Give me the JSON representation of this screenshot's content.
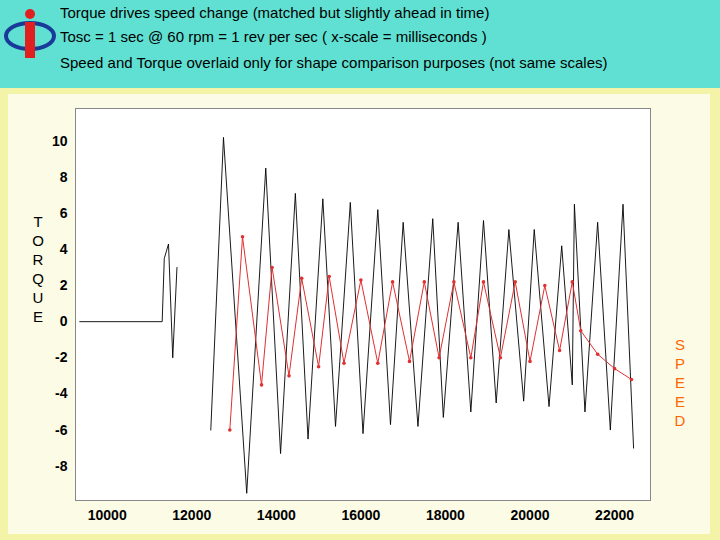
{
  "chart_data": {
    "type": "line",
    "title": "Torque drives speed change (matched but slightly ahead in time)",
    "subtitle": [
      "Tosc = 1 sec @ 60 rpm = 1 rev per sec   ( x-scale = milliseconds )",
      "Speed and Torque overlaid only for shape comparison purposes (not same scales)"
    ],
    "ylabel": "TORQUE",
    "y2label": "SPEED",
    "xlim": [
      9250,
      22850
    ],
    "xticks": [
      10000,
      12000,
      14000,
      16000,
      18000,
      20000,
      22000
    ],
    "ylim": [
      -9.9,
      11.8
    ],
    "yticks": [
      -8,
      -6,
      -4,
      -2,
      0,
      2,
      4,
      6,
      8,
      10
    ],
    "grid": false,
    "series": [
      {
        "name": "TORQUE",
        "color": "#000000",
        "marker": "none",
        "line_style": "solid",
        "x": [
          9350,
          11300,
          11350,
          11450,
          11550,
          11650,
          11700,
          12450,
          12750,
          13300,
          13750,
          14100,
          14450,
          14750,
          15100,
          15400,
          15750,
          16050,
          16400,
          16700,
          17000,
          17350,
          17700,
          17950,
          18300,
          18600,
          18900,
          19200,
          19500,
          19850,
          20100,
          20450,
          20750,
          21000,
          21050,
          21300,
          21600,
          21900,
          22200,
          22450
        ],
        "values": [
          0,
          0,
          3.5,
          4.3,
          -2,
          3,
          null,
          -6,
          10.2,
          -9.5,
          8.5,
          -7.3,
          7.1,
          -6.5,
          6.8,
          -5.8,
          6.6,
          -6.2,
          6.2,
          -5.7,
          5.5,
          -5.8,
          5.7,
          -5.3,
          5.5,
          -5,
          5.6,
          -4.5,
          5.1,
          -4.4,
          5.1,
          -4.7,
          4.2,
          -3.5,
          6.5,
          -5,
          5.5,
          -6,
          6.5,
          -7
        ]
      },
      {
        "name": "SPEED",
        "color": "#e03030",
        "marker": "dot",
        "line_style": "solid",
        "x": [
          12900,
          13200,
          13650,
          13900,
          14300,
          14600,
          15000,
          15250,
          15600,
          16000,
          16400,
          16750,
          17150,
          17500,
          17850,
          18200,
          18600,
          18900,
          19300,
          19650,
          20000,
          20350,
          20700,
          21000,
          21200,
          21600,
          22000,
          22400
        ],
        "values": [
          -6,
          4.7,
          -3.5,
          3,
          -3,
          2.4,
          -2.5,
          2.5,
          -2.3,
          2.3,
          -2.3,
          2.2,
          -2.2,
          2.2,
          -2,
          2.2,
          -2,
          2.2,
          -2,
          2.2,
          -2.2,
          2,
          -1.6,
          2.2,
          -0.5,
          -1.8,
          -2.6,
          -3.2
        ]
      }
    ]
  }
}
